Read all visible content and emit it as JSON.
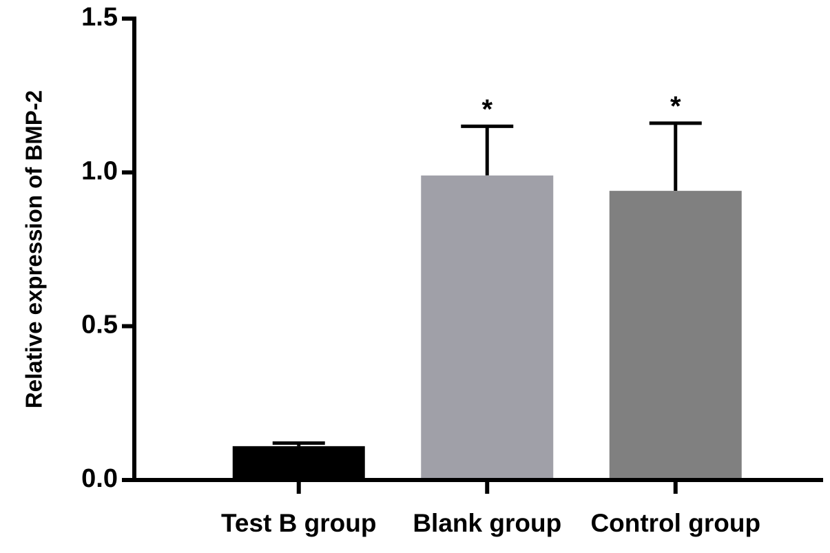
{
  "chart_data": {
    "type": "bar",
    "y_label": "Relative expression of BMP-2",
    "categories": [
      "Test B group",
      "Blank group",
      "Control group"
    ],
    "values": [
      0.11,
      0.99,
      0.94
    ],
    "errors": [
      0.01,
      0.16,
      0.22
    ],
    "significance": [
      null,
      "*",
      "*"
    ],
    "colors": [
      "#000000",
      "#a0a0a8",
      "#808080"
    ],
    "ylim": [
      0,
      1.5
    ],
    "yticks": [
      {
        "value": 0,
        "label": "0.0"
      },
      0.5,
      {
        "value": 1,
        "label": "1.0"
      },
      1.5
    ]
  }
}
